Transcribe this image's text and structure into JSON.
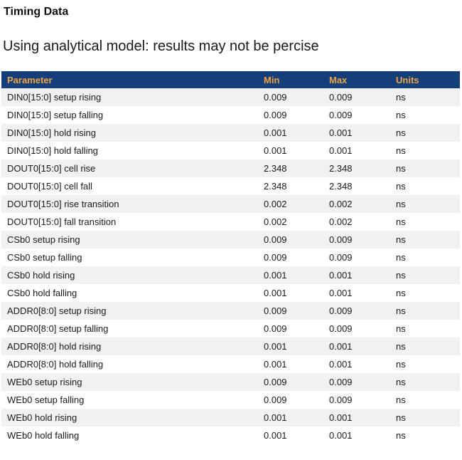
{
  "page": {
    "title": "Timing Data",
    "subtitle": "Using analytical model: results may not be percise"
  },
  "table": {
    "columns": [
      "Parameter",
      "Min",
      "Max",
      "Units"
    ],
    "rows": [
      {
        "parameter": "DIN0[15:0] setup rising",
        "min": "0.009",
        "max": "0.009",
        "units": "ns"
      },
      {
        "parameter": "DIN0[15:0] setup falling",
        "min": "0.009",
        "max": "0.009",
        "units": "ns"
      },
      {
        "parameter": "DIN0[15:0] hold rising",
        "min": "0.001",
        "max": "0.001",
        "units": "ns"
      },
      {
        "parameter": "DIN0[15:0] hold falling",
        "min": "0.001",
        "max": "0.001",
        "units": "ns"
      },
      {
        "parameter": "DOUT0[15:0] cell rise",
        "min": "2.348",
        "max": "2.348",
        "units": "ns"
      },
      {
        "parameter": "DOUT0[15:0] cell fall",
        "min": "2.348",
        "max": "2.348",
        "units": "ns"
      },
      {
        "parameter": "DOUT0[15:0] rise transition",
        "min": "0.002",
        "max": "0.002",
        "units": "ns"
      },
      {
        "parameter": "DOUT0[15:0] fall transition",
        "min": "0.002",
        "max": "0.002",
        "units": "ns"
      },
      {
        "parameter": "CSb0 setup rising",
        "min": "0.009",
        "max": "0.009",
        "units": "ns"
      },
      {
        "parameter": "CSb0 setup falling",
        "min": "0.009",
        "max": "0.009",
        "units": "ns"
      },
      {
        "parameter": "CSb0 hold rising",
        "min": "0.001",
        "max": "0.001",
        "units": "ns"
      },
      {
        "parameter": "CSb0 hold falling",
        "min": "0.001",
        "max": "0.001",
        "units": "ns"
      },
      {
        "parameter": "ADDR0[8:0] setup rising",
        "min": "0.009",
        "max": "0.009",
        "units": "ns"
      },
      {
        "parameter": "ADDR0[8:0] setup falling",
        "min": "0.009",
        "max": "0.009",
        "units": "ns"
      },
      {
        "parameter": "ADDR0[8:0] hold rising",
        "min": "0.001",
        "max": "0.001",
        "units": "ns"
      },
      {
        "parameter": "ADDR0[8:0] hold falling",
        "min": "0.001",
        "max": "0.001",
        "units": "ns"
      },
      {
        "parameter": "WEb0 setup rising",
        "min": "0.009",
        "max": "0.009",
        "units": "ns"
      },
      {
        "parameter": "WEb0 setup falling",
        "min": "0.009",
        "max": "0.009",
        "units": "ns"
      },
      {
        "parameter": "WEb0 hold rising",
        "min": "0.001",
        "max": "0.001",
        "units": "ns"
      },
      {
        "parameter": "WEb0 hold falling",
        "min": "0.001",
        "max": "0.001",
        "units": "ns"
      }
    ]
  },
  "colors": {
    "header_bg": "#143f7a",
    "header_text": "#f0a343",
    "row_alt_bg": "#f0f1f1",
    "row_bg": "#ffffff",
    "body_text": "#1a1a1a"
  }
}
